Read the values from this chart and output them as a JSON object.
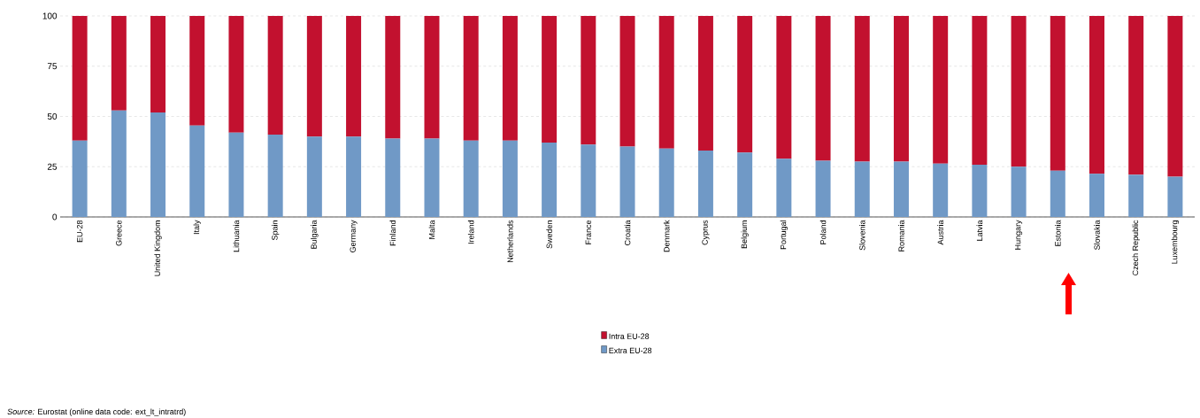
{
  "chart_data": {
    "type": "bar",
    "stacked": true,
    "categories": [
      "EU-28",
      "Greece",
      "United Kingdom",
      "Italy",
      "Lithuania",
      "Spain",
      "Bulgaria",
      "Germany",
      "Finland",
      "Malta",
      "Ireland",
      "Netherlands",
      "Sweden",
      "France",
      "Croatia",
      "Denmark",
      "Cyprus",
      "Belgium",
      "Portugal",
      "Poland",
      "Slovenia",
      "Romania",
      "Austria",
      "Latvia",
      "Hungary",
      "Estonia",
      "Slovakia",
      "Czech Republic",
      "Luxembourg"
    ],
    "series": [
      {
        "name": "Extra EU-28",
        "color": "#7099c6",
        "values": [
          38,
          53,
          52,
          45.5,
          42,
          41,
          40,
          40,
          39,
          39,
          38,
          38,
          37,
          36,
          35,
          34,
          33,
          32,
          29,
          28,
          27.5,
          27.5,
          26.5,
          26,
          25,
          23,
          21.5,
          21,
          20
        ]
      },
      {
        "name": "Intra EU-28",
        "color": "#c2112f",
        "values": [
          62,
          47,
          48,
          54.5,
          58,
          59,
          60,
          60,
          61,
          61,
          62,
          62,
          63,
          64,
          65,
          66,
          67,
          68,
          71,
          72,
          72.5,
          72.5,
          73.5,
          74,
          75,
          77,
          78.5,
          79,
          80
        ]
      }
    ],
    "ylim": [
      0,
      100
    ],
    "yticks": [
      0,
      25,
      50,
      75,
      100
    ],
    "grid": "y",
    "legend": "bottom",
    "annotations": [
      "*Source:* Eurostat (online data code: ext_lt_intratrd)"
    ]
  }
}
